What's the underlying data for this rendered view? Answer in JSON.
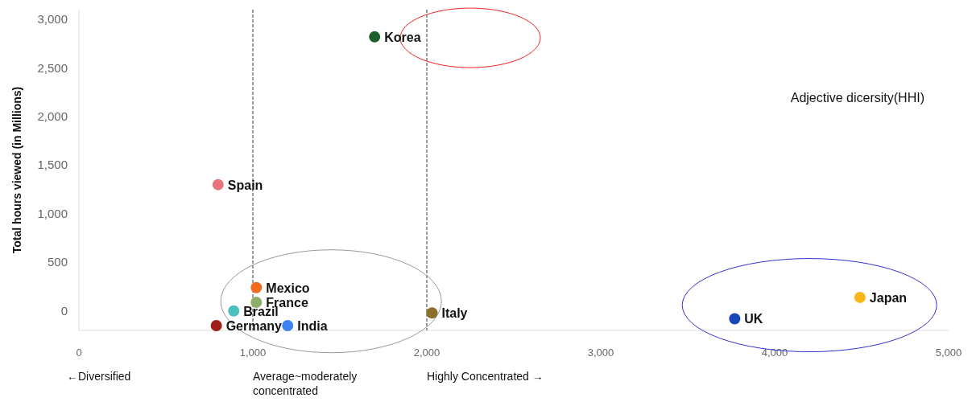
{
  "chart_data": {
    "type": "scatter",
    "xlabel": "Adjective dicersity(HHI)",
    "ylabel": "Total hours viewed (in Millions)",
    "xlim": [
      0,
      5000
    ],
    "ylim": [
      -200,
      3100
    ],
    "xticks": [
      0,
      {
        "value": 1000,
        "label": "1,000"
      },
      {
        "value": 2000,
        "label": "2,000"
      },
      {
        "value": 3000,
        "label": "3,000"
      },
      {
        "value": 4000,
        "label": "4,000"
      },
      {
        "value": 5000,
        "label": "5,000"
      }
    ],
    "yticks": [
      0,
      {
        "value": 500,
        "label": "500"
      },
      {
        "value": 1000,
        "label": "1,000"
      },
      {
        "value": 1500,
        "label": "1,500"
      },
      {
        "value": 2000,
        "label": "2,000"
      },
      {
        "value": 2500,
        "label": "2,500"
      },
      {
        "value": 3000,
        "label": "3,000"
      }
    ],
    "grid": false,
    "marker": "circle",
    "ref_lines": [
      {
        "axis": "x",
        "value": 1000,
        "color": "#999999",
        "line_style": "dashed"
      },
      {
        "axis": "x",
        "value": 2000,
        "color": "#999999",
        "line_style": "dashed"
      }
    ],
    "annotations": [
      "←Diversified",
      "Average~moderately concentrated",
      "Highly Concentrated →"
    ],
    "series": [
      {
        "name": "Korea",
        "color": "#1b5e2a",
        "x": [
          1700
        ],
        "values": [
          2820
        ]
      },
      {
        "name": "Spain",
        "color": "#e8737a",
        "x": [
          800
        ],
        "values": [
          1300
        ]
      },
      {
        "name": "Mexico",
        "color": "#f26b1d",
        "x": [
          1020
        ],
        "values": [
          240
        ]
      },
      {
        "name": "France",
        "color": "#8fae6a",
        "x": [
          1020
        ],
        "values": [
          90
        ]
      },
      {
        "name": "Brazil",
        "color": "#4bbfc0",
        "x": [
          890
        ],
        "values": [
          0
        ]
      },
      {
        "name": "Germany",
        "color": "#a01e1a",
        "x": [
          790
        ],
        "values": [
          -150
        ]
      },
      {
        "name": "India",
        "color": "#3b82f6",
        "x": [
          1200
        ],
        "values": [
          -150
        ]
      },
      {
        "name": "Italy",
        "color": "#8b6f2a",
        "x": [
          2030
        ],
        "values": [
          -20
        ]
      },
      {
        "name": "UK",
        "color": "#1a47b8",
        "x": [
          3770
        ],
        "values": [
          -80
        ]
      },
      {
        "name": "Japan",
        "color": "#f9b617",
        "x": [
          4490
        ],
        "values": [
          140
        ]
      }
    ]
  }
}
